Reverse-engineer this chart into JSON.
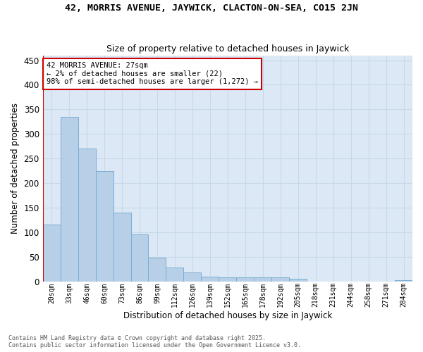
{
  "title1": "42, MORRIS AVENUE, JAYWICK, CLACTON-ON-SEA, CO15 2JN",
  "title2": "Size of property relative to detached houses in Jaywick",
  "xlabel": "Distribution of detached houses by size in Jaywick",
  "ylabel": "Number of detached properties",
  "categories": [
    "20sqm",
    "33sqm",
    "46sqm",
    "60sqm",
    "73sqm",
    "86sqm",
    "99sqm",
    "112sqm",
    "126sqm",
    "139sqm",
    "152sqm",
    "165sqm",
    "178sqm",
    "192sqm",
    "205sqm",
    "218sqm",
    "231sqm",
    "244sqm",
    "258sqm",
    "271sqm",
    "284sqm"
  ],
  "values": [
    115,
    335,
    270,
    225,
    140,
    95,
    48,
    28,
    18,
    10,
    8,
    8,
    8,
    8,
    5,
    0,
    0,
    0,
    0,
    0,
    3
  ],
  "bar_color": "#b8cfe8",
  "bar_edge_color": "#7aadd4",
  "grid_color": "#c8d8e8",
  "bg_color": "#dce8f5",
  "annotation_text": "42 MORRIS AVENUE: 27sqm\n← 2% of detached houses are smaller (22)\n98% of semi-detached houses are larger (1,272) →",
  "annotation_box_color": "#ffffff",
  "annotation_box_edge": "#cc0000",
  "vline_color": "#cc0000",
  "footer1": "Contains HM Land Registry data © Crown copyright and database right 2025.",
  "footer2": "Contains public sector information licensed under the Open Government Licence v3.0.",
  "ylim": [
    0,
    460
  ],
  "yticks": [
    0,
    50,
    100,
    150,
    200,
    250,
    300,
    350,
    400,
    450
  ]
}
